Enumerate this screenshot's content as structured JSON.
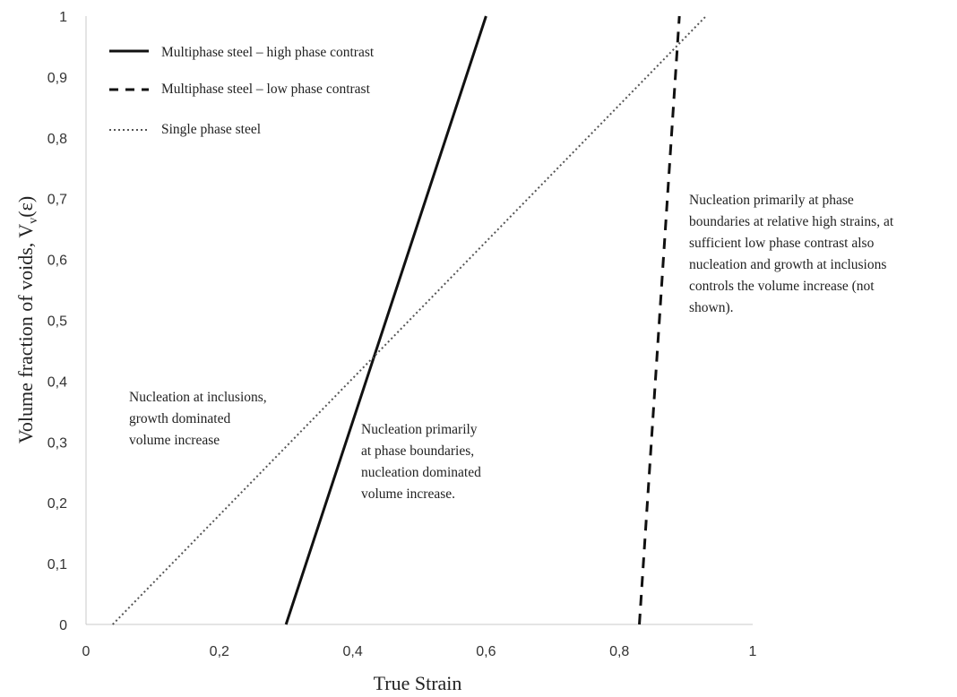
{
  "chart_data": {
    "type": "line",
    "title": "",
    "xlabel": "True Strain",
    "ylabel": "Volume fraction of voids, V",
    "ylabel_sub": "v",
    "ylabel_suffix": "(ε)",
    "xlim": [
      0,
      1
    ],
    "ylim": [
      0,
      1
    ],
    "x_ticks": [
      "0",
      "0,2",
      "0,4",
      "0,6",
      "0,8",
      "1"
    ],
    "y_ticks": [
      "0",
      "0,1",
      "0,2",
      "0,3",
      "0,4",
      "0,5",
      "0,6",
      "0,7",
      "0,8",
      "0,9",
      "1"
    ],
    "grid": false,
    "legend_position": "top-left",
    "series": [
      {
        "name": "Multiphase steel – high phase contrast",
        "style": "solid",
        "x": [
          0.3,
          0.6
        ],
        "y": [
          0,
          1
        ]
      },
      {
        "name": "Multiphase steel – low phase contrast",
        "style": "dashed",
        "x": [
          0.83,
          0.89
        ],
        "y": [
          0,
          1
        ]
      },
      {
        "name": "Single phase steel",
        "style": "dotted",
        "x": [
          0.04,
          0.93
        ],
        "y": [
          0,
          1
        ]
      }
    ],
    "annotations": [
      {
        "lines": [
          "Nucleation at inclusions,",
          "growth dominated",
          "volume increase"
        ]
      },
      {
        "lines": [
          "Nucleation primarily",
          "at phase boundaries,",
          "nucleation dominated",
          "volume increase."
        ]
      },
      {
        "lines": [
          "Nucleation primarily at phase",
          "boundaries at relative high strains, at",
          "sufficient low phase contrast also",
          "nucleation and growth at inclusions",
          "controls the volume increase (not",
          "shown)."
        ]
      }
    ]
  }
}
